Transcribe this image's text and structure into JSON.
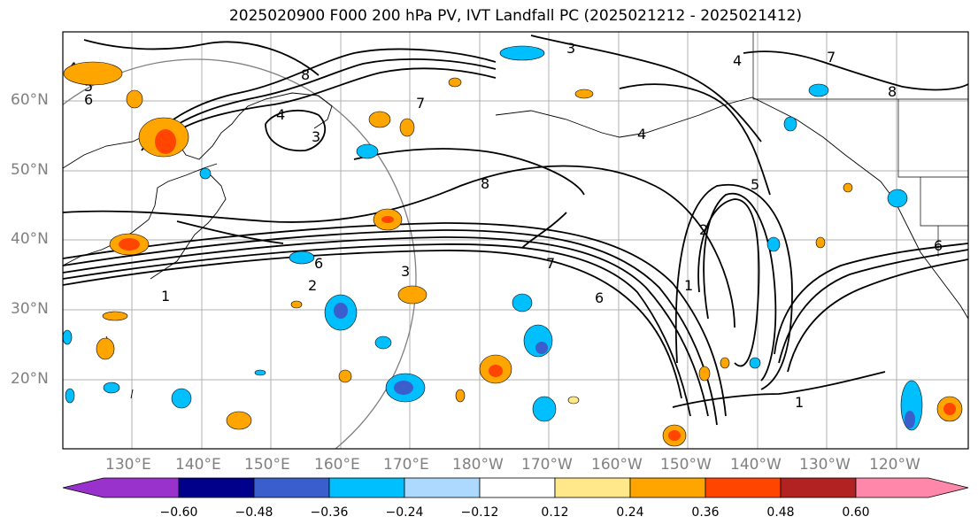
{
  "title": "2025020900 F000 200 hPa PV, IVT Landfall PC (2025021212 - 2025021412)",
  "lat_labels": [
    "60°N",
    "50°N",
    "40°N",
    "30°N",
    "20°N"
  ],
  "lon_labels": [
    "130°E",
    "140°E",
    "150°E",
    "160°E",
    "170°E",
    "180°W",
    "170°W",
    "160°W",
    "150°W",
    "140°W",
    "130°W",
    "120°W"
  ],
  "colorbar": {
    "ticks": [
      "−0.60",
      "−0.48",
      "−0.36",
      "−0.24",
      "−0.12",
      "0.12",
      "0.24",
      "0.36",
      "0.48",
      "0.60"
    ],
    "colors": [
      "#9932cc",
      "#00008b",
      "#3a5fcd",
      "#00bfff",
      "#add8ff",
      "#ffffff",
      "#ffe88a",
      "#ffa500",
      "#ff4500",
      "#b22222",
      "#ff88aa"
    ]
  },
  "contour_labels": [
    "8",
    "5",
    "6",
    "4",
    "3",
    "4",
    "7",
    "3",
    "6",
    "7",
    "8",
    "3",
    "5",
    "2",
    "1",
    "6",
    "2",
    "1",
    "7",
    "4",
    "1",
    "6",
    "4",
    "8"
  ],
  "colors": {
    "positive_light": "#ffe88a",
    "positive_mid": "#ffa500",
    "positive_strong": "#ff4500",
    "negative_light": "#add8ff",
    "negative_mid": "#00bfff",
    "negative_strong": "#3a5fcd"
  }
}
